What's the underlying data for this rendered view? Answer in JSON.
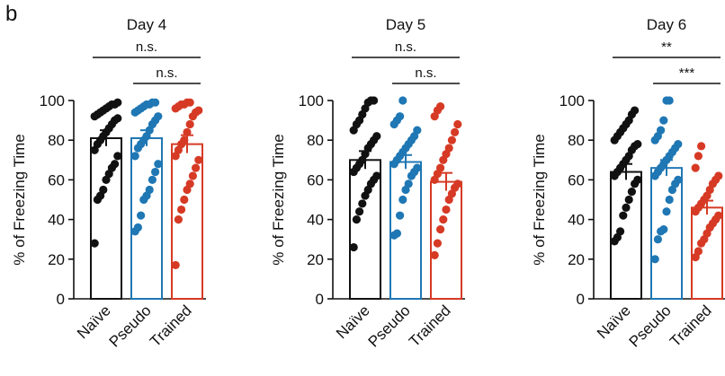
{
  "panel_label": "b",
  "colors": {
    "Naïve": "#111111",
    "Pseudo": "#1f77b4",
    "Trained": "#d63a25",
    "axis": "#111111"
  },
  "chart_data": [
    {
      "type": "bar",
      "title": "Day 4",
      "ylabel": "% of Freezing Time",
      "ylim": [
        0,
        100
      ],
      "yticks": [
        "0",
        "20",
        "40",
        "60",
        "80",
        "100"
      ],
      "categories": [
        "Naïve",
        "Pseudo",
        "Trained"
      ],
      "series": [
        {
          "values": [
            81,
            81,
            78
          ],
          "errors": [
            4,
            4,
            4.5
          ],
          "points": [
            [
              28,
              50,
              52,
              55,
              60,
              63,
              66,
              68,
              72,
              75,
              78,
              80,
              82,
              84,
              86,
              88,
              90,
              91,
              92,
              93,
              94,
              95,
              96,
              97,
              98,
              98,
              99
            ],
            [
              34,
              36,
              42,
              50,
              52,
              55,
              60,
              64,
              68,
              72,
              76,
              78,
              80,
              82,
              85,
              88,
              90,
              92,
              94,
              95,
              96,
              97,
              98,
              98,
              99,
              99
            ],
            [
              17,
              40,
              45,
              50,
              55,
              58,
              62,
              66,
              70,
              72,
              75,
              78,
              80,
              84,
              88,
              92,
              94,
              95,
              96,
              97,
              98,
              98,
              99,
              99
            ]
          ]
        }
      ],
      "comparisons": [
        {
          "from": 0,
          "to": 2,
          "label": "n.s."
        },
        {
          "from": 1,
          "to": 2,
          "label": "n.s."
        }
      ]
    },
    {
      "type": "bar",
      "title": "Day 5",
      "ylabel": "% of Freezing Time",
      "ylim": [
        0,
        100
      ],
      "yticks": [
        "0",
        "20",
        "40",
        "60",
        "80",
        "100"
      ],
      "categories": [
        "Naïve",
        "Pseudo",
        "Trained"
      ],
      "series": [
        {
          "values": [
            70,
            69,
            59
          ],
          "errors": [
            4.5,
            3.5,
            4.5
          ],
          "points": [
            [
              26,
              40,
              44,
              48,
              52,
              55,
              58,
              60,
              62,
              64,
              66,
              68,
              70,
              73,
              76,
              78,
              80,
              82,
              85,
              88,
              90,
              93,
              96,
              99,
              100,
              100
            ],
            [
              32,
              33,
              42,
              50,
              55,
              58,
              62,
              64,
              66,
              68,
              70,
              72,
              74,
              76,
              78,
              80,
              82,
              85,
              88,
              90,
              92,
              100
            ],
            [
              22,
              28,
              35,
              40,
              45,
              50,
              53,
              56,
              58,
              60,
              63,
              66,
              70,
              73,
              76,
              80,
              84,
              88,
              92,
              95,
              97
            ]
          ]
        }
      ],
      "comparisons": [
        {
          "from": 0,
          "to": 2,
          "label": "n.s."
        },
        {
          "from": 1,
          "to": 2,
          "label": "n.s."
        }
      ]
    },
    {
      "type": "bar",
      "title": "Day 6",
      "ylabel": "% of Freezing Time",
      "ylim": [
        0,
        100
      ],
      "yticks": [
        "0",
        "20",
        "40",
        "60",
        "80",
        "100"
      ],
      "categories": [
        "Naïve",
        "Pseudo",
        "Trained"
      ],
      "series": [
        {
          "values": [
            64,
            66,
            46
          ],
          "errors": [
            4,
            4,
            3.5
          ],
          "points": [
            [
              29,
              31,
              34,
              42,
              46,
              50,
              54,
              58,
              60,
              62,
              64,
              66,
              68,
              70,
              72,
              75,
              77,
              78,
              80,
              82,
              84,
              86,
              88,
              90,
              93,
              95
            ],
            [
              20,
              30,
              34,
              35,
              44,
              50,
              55,
              58,
              60,
              62,
              64,
              66,
              68,
              70,
              72,
              74,
              76,
              78,
              80,
              82,
              85,
              90,
              100,
              100
            ],
            [
              21,
              24,
              28,
              30,
              33,
              36,
              38,
              40,
              42,
              44,
              46,
              48,
              50,
              52,
              55,
              58,
              60,
              62,
              66,
              72,
              77
            ]
          ]
        }
      ],
      "comparisons": [
        {
          "from": 0,
          "to": 2,
          "label": "**"
        },
        {
          "from": 1,
          "to": 2,
          "label": "***"
        }
      ]
    }
  ]
}
